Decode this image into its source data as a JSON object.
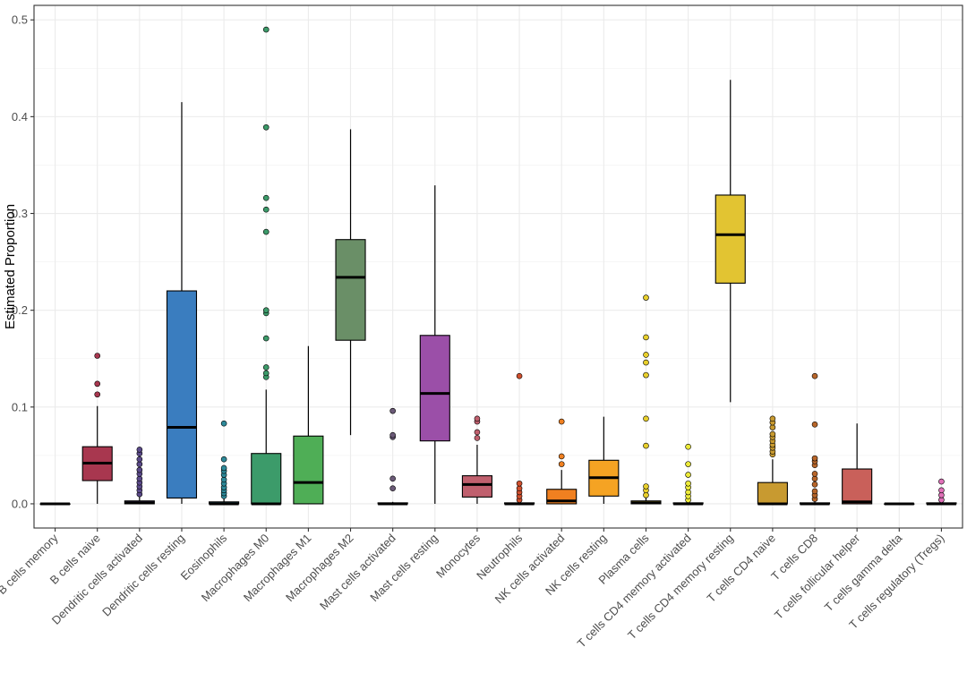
{
  "chart_data": {
    "type": "boxplot",
    "title": "",
    "xlabel": "",
    "ylabel": "Estimated Proportion",
    "ylim": [
      -0.025,
      0.515
    ],
    "yticks": [
      0.0,
      0.1,
      0.2,
      0.3,
      0.4,
      0.5
    ],
    "ytick_labels": [
      "0.0",
      "0.1",
      "0.2",
      "0.3",
      "0.4",
      "0.5"
    ],
    "grid": true,
    "legend": "none",
    "categories": [
      {
        "name": "B cells memory",
        "color": "#8c1a30",
        "stats": {
          "min": 0,
          "q1": 0,
          "median": 0,
          "q3": 0,
          "max": 0
        },
        "outliers": []
      },
      {
        "name": "B cells naive",
        "color": "#a8374f",
        "stats": {
          "min": 0.0,
          "q1": 0.024,
          "median": 0.042,
          "q3": 0.059,
          "max": 0.101
        },
        "outliers": [
          0.113,
          0.124,
          0.153
        ]
      },
      {
        "name": "Dendritic cells activated",
        "color": "#5b4a8a",
        "stats": {
          "min": 0,
          "q1": 0,
          "median": 0.001,
          "q3": 0.003,
          "max": 0.007
        },
        "outliers": [
          0.01,
          0.014,
          0.018,
          0.022,
          0.026,
          0.031,
          0.035,
          0.041,
          0.046,
          0.052,
          0.056
        ]
      },
      {
        "name": "Dendritic cells resting",
        "color": "#3a7dbf",
        "stats": {
          "min": 0.0,
          "q1": 0.006,
          "median": 0.079,
          "q3": 0.22,
          "max": 0.415
        },
        "outliers": []
      },
      {
        "name": "Eosinophils",
        "color": "#2e8a9a",
        "stats": {
          "min": 0,
          "q1": 0,
          "median": 0,
          "q3": 0.002,
          "max": 0.005
        },
        "outliers": [
          0.008,
          0.011,
          0.014,
          0.017,
          0.021,
          0.025,
          0.03,
          0.034,
          0.037,
          0.046,
          0.083
        ]
      },
      {
        "name": "Macrophages M0",
        "color": "#3c9b6a",
        "stats": {
          "min": 0,
          "q1": 0.0,
          "median": 0.0,
          "q3": 0.052,
          "max": 0.118
        },
        "outliers": [
          0.131,
          0.135,
          0.141,
          0.171,
          0.197,
          0.2,
          0.281,
          0.304,
          0.316,
          0.389,
          0.49
        ]
      },
      {
        "name": "Macrophages M1",
        "color": "#4fae56",
        "stats": {
          "min": 0.0,
          "q1": 0.0,
          "median": 0.022,
          "q3": 0.07,
          "max": 0.163
        },
        "outliers": []
      },
      {
        "name": "Macrophages M2",
        "color": "#6a8f67",
        "stats": {
          "min": 0.071,
          "q1": 0.169,
          "median": 0.234,
          "q3": 0.273,
          "max": 0.387
        },
        "outliers": []
      },
      {
        "name": "Mast cells activated",
        "color": "#6b5a78",
        "stats": {
          "min": 0,
          "q1": 0,
          "median": 0,
          "q3": 0.001,
          "max": 0.002
        },
        "outliers": [
          0.016,
          0.026,
          0.069,
          0.071,
          0.096
        ]
      },
      {
        "name": "Mast cells resting",
        "color": "#9b4fa8",
        "stats": {
          "min": 0.0,
          "q1": 0.065,
          "median": 0.114,
          "q3": 0.174,
          "max": 0.329
        },
        "outliers": []
      },
      {
        "name": "Monocytes",
        "color": "#c0606e",
        "stats": {
          "min": 0.0,
          "q1": 0.007,
          "median": 0.02,
          "q3": 0.029,
          "max": 0.061
        },
        "outliers": [
          0.068,
          0.074,
          0.085,
          0.088
        ]
      },
      {
        "name": "Neutrophils",
        "color": "#d0502e",
        "stats": {
          "min": 0,
          "q1": 0,
          "median": 0,
          "q3": 0.001,
          "max": 0.002
        },
        "outliers": [
          0.004,
          0.008,
          0.012,
          0.016,
          0.021,
          0.132
        ]
      },
      {
        "name": "NK cells activated",
        "color": "#f08020",
        "stats": {
          "min": 0.0,
          "q1": 0.0,
          "median": 0.003,
          "q3": 0.015,
          "max": 0.035
        },
        "outliers": [
          0.041,
          0.049,
          0.085
        ]
      },
      {
        "name": "NK cells resting",
        "color": "#f5a323",
        "stats": {
          "min": 0.0,
          "q1": 0.008,
          "median": 0.027,
          "q3": 0.045,
          "max": 0.09
        },
        "outliers": []
      },
      {
        "name": "Plasma cells",
        "color": "#e8cf2c",
        "stats": {
          "min": 0,
          "q1": 0,
          "median": 0.001,
          "q3": 0.003,
          "max": 0.007
        },
        "outliers": [
          0.009,
          0.014,
          0.018,
          0.06,
          0.088,
          0.133,
          0.146,
          0.154,
          0.172,
          0.213
        ]
      },
      {
        "name": "T cells CD4 memory activated",
        "color": "#ecea3a",
        "stats": {
          "min": 0,
          "q1": 0,
          "median": 0,
          "q3": 0.001,
          "max": 0.003
        },
        "outliers": [
          0.004,
          0.008,
          0.012,
          0.017,
          0.021,
          0.03,
          0.041,
          0.059
        ]
      },
      {
        "name": "T cells CD4 memory resting",
        "color": "#e2c432",
        "stats": {
          "min": 0.105,
          "q1": 0.228,
          "median": 0.278,
          "q3": 0.319,
          "max": 0.438
        },
        "outliers": []
      },
      {
        "name": "T cells CD4 naive",
        "color": "#c89a30",
        "stats": {
          "min": 0,
          "q1": 0.0,
          "median": 0.0,
          "q3": 0.022,
          "max": 0.046
        },
        "outliers": [
          0.051,
          0.054,
          0.058,
          0.061,
          0.065,
          0.069,
          0.072,
          0.079,
          0.084,
          0.088
        ]
      },
      {
        "name": "T cells CD8",
        "color": "#b8662a",
        "stats": {
          "min": 0,
          "q1": 0,
          "median": 0.0,
          "q3": 0.001,
          "max": 0.003
        },
        "outliers": [
          0.005,
          0.009,
          0.013,
          0.02,
          0.026,
          0.031,
          0.04,
          0.044,
          0.047,
          0.082,
          0.132
        ]
      },
      {
        "name": "T cells follicular helper",
        "color": "#c9605a",
        "stats": {
          "min": 0.0,
          "q1": 0.0,
          "median": 0.002,
          "q3": 0.036,
          "max": 0.083
        },
        "outliers": []
      },
      {
        "name": "T cells gamma delta",
        "color": "#c7a0a8",
        "stats": {
          "min": 0,
          "q1": 0,
          "median": 0,
          "q3": 0,
          "max": 0
        },
        "outliers": []
      },
      {
        "name": "T cells regulatory (Tregs)",
        "color": "#e070b8",
        "stats": {
          "min": 0,
          "q1": 0,
          "median": 0,
          "q3": 0.001,
          "max": 0.002
        },
        "outliers": [
          0.004,
          0.009,
          0.014,
          0.023
        ]
      }
    ]
  }
}
